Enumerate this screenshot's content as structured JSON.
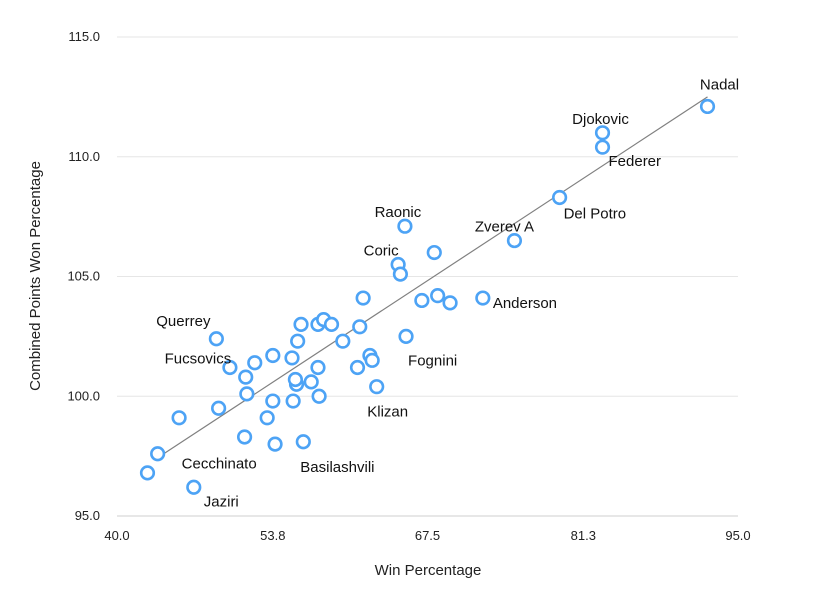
{
  "chart_data": {
    "type": "scatter",
    "xlabel": "Win Percentage",
    "ylabel": "Combined Points Won Percentage",
    "xlim": [
      40.0,
      95.0
    ],
    "ylim": [
      95.0,
      115.0
    ],
    "x_ticks": [
      "40.0",
      "53.8",
      "67.5",
      "81.3",
      "95.0"
    ],
    "y_ticks": [
      "95.0",
      "100.0",
      "105.0",
      "110.0",
      "115.0"
    ],
    "grid": "horizontal",
    "marker_color": "#4da3f5",
    "trendline": {
      "x": [
        43.5,
        92.3
      ],
      "y": [
        97.4,
        112.5
      ],
      "color": "#808080"
    },
    "points": [
      {
        "x": 92.3,
        "y": 112.1,
        "label": "Nadal"
      },
      {
        "x": 83.0,
        "y": 111.0,
        "label": "Djokovic"
      },
      {
        "x": 83.0,
        "y": 110.4,
        "label": "Federer"
      },
      {
        "x": 79.2,
        "y": 108.3,
        "label": "Del Potro"
      },
      {
        "x": 65.5,
        "y": 107.1,
        "label": "Raonic"
      },
      {
        "x": 75.2,
        "y": 106.5,
        "label": "Zverev A"
      },
      {
        "x": 64.9,
        "y": 105.5,
        "label": "Coric"
      },
      {
        "x": 72.4,
        "y": 104.1,
        "label": "Anderson"
      },
      {
        "x": 48.8,
        "y": 102.4,
        "label": "Querrey"
      },
      {
        "x": 65.6,
        "y": 102.5,
        "label": "Fognini"
      },
      {
        "x": 50.0,
        "y": 101.2,
        "label": "Fucsovics"
      },
      {
        "x": 63.0,
        "y": 100.4,
        "label": "Klizan"
      },
      {
        "x": 43.6,
        "y": 97.6,
        "label": "Cecchinato"
      },
      {
        "x": 56.5,
        "y": 98.1,
        "label": "Basilashvili"
      },
      {
        "x": 46.8,
        "y": 96.2,
        "label": "Jaziri"
      },
      {
        "x": 42.7,
        "y": 96.8,
        "label": ""
      },
      {
        "x": 45.5,
        "y": 99.1,
        "label": ""
      },
      {
        "x": 49.0,
        "y": 99.5,
        "label": ""
      },
      {
        "x": 51.3,
        "y": 98.3,
        "label": ""
      },
      {
        "x": 53.3,
        "y": 99.1,
        "label": ""
      },
      {
        "x": 54.0,
        "y": 98.0,
        "label": ""
      },
      {
        "x": 51.5,
        "y": 100.1,
        "label": ""
      },
      {
        "x": 51.4,
        "y": 100.8,
        "label": ""
      },
      {
        "x": 52.2,
        "y": 101.4,
        "label": ""
      },
      {
        "x": 53.8,
        "y": 99.8,
        "label": ""
      },
      {
        "x": 53.8,
        "y": 101.7,
        "label": ""
      },
      {
        "x": 55.6,
        "y": 99.8,
        "label": ""
      },
      {
        "x": 55.9,
        "y": 100.5,
        "label": ""
      },
      {
        "x": 55.8,
        "y": 100.7,
        "label": ""
      },
      {
        "x": 55.5,
        "y": 101.6,
        "label": ""
      },
      {
        "x": 56.0,
        "y": 102.3,
        "label": ""
      },
      {
        "x": 56.3,
        "y": 103.0,
        "label": ""
      },
      {
        "x": 57.2,
        "y": 100.6,
        "label": ""
      },
      {
        "x": 57.9,
        "y": 100.0,
        "label": ""
      },
      {
        "x": 57.8,
        "y": 101.2,
        "label": ""
      },
      {
        "x": 57.8,
        "y": 103.0,
        "label": ""
      },
      {
        "x": 58.3,
        "y": 103.2,
        "label": ""
      },
      {
        "x": 59.0,
        "y": 103.0,
        "label": ""
      },
      {
        "x": 60.0,
        "y": 102.3,
        "label": ""
      },
      {
        "x": 61.3,
        "y": 101.2,
        "label": ""
      },
      {
        "x": 61.5,
        "y": 102.9,
        "label": ""
      },
      {
        "x": 61.8,
        "y": 104.1,
        "label": ""
      },
      {
        "x": 62.4,
        "y": 101.7,
        "label": ""
      },
      {
        "x": 62.6,
        "y": 101.5,
        "label": ""
      },
      {
        "x": 65.1,
        "y": 105.1,
        "label": ""
      },
      {
        "x": 67.0,
        "y": 104.0,
        "label": ""
      },
      {
        "x": 68.1,
        "y": 106.0,
        "label": ""
      },
      {
        "x": 68.4,
        "y": 104.2,
        "label": ""
      },
      {
        "x": 69.5,
        "y": 103.9,
        "label": ""
      }
    ]
  }
}
